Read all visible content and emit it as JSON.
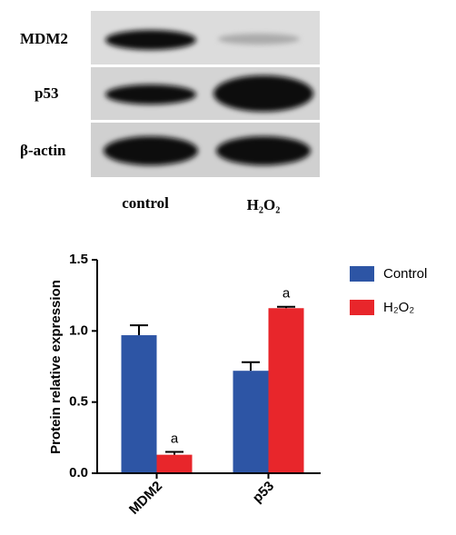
{
  "blot": {
    "rows": [
      "MDM2",
      "p53",
      "β-actin"
    ],
    "lanes": [
      "control",
      "H₂O₂"
    ]
  },
  "chart_data": {
    "type": "bar",
    "y_label": "Protein relative expression",
    "categories": [
      "MDM2",
      "p53"
    ],
    "series": [
      {
        "name": "Control",
        "color": "#2d55a5",
        "values": [
          0.97,
          0.72
        ],
        "errors": [
          0.07,
          0.06
        ]
      },
      {
        "name": "H₂O₂",
        "color": "#e8262b",
        "values": [
          0.13,
          1.16
        ],
        "errors": [
          0.02,
          0.01
        ]
      }
    ],
    "annotations": [
      {
        "series": 1,
        "category": 0,
        "text": "a"
      },
      {
        "series": 1,
        "category": 1,
        "text": "a"
      }
    ],
    "ylim": [
      0,
      1.5
    ],
    "yticks": [
      {
        "value": 0,
        "label": "0.0"
      },
      0.5,
      {
        "value": 1,
        "label": "1.0"
      },
      {
        "value": 1.5,
        "label": "1.5"
      }
    ],
    "legend": "right"
  }
}
